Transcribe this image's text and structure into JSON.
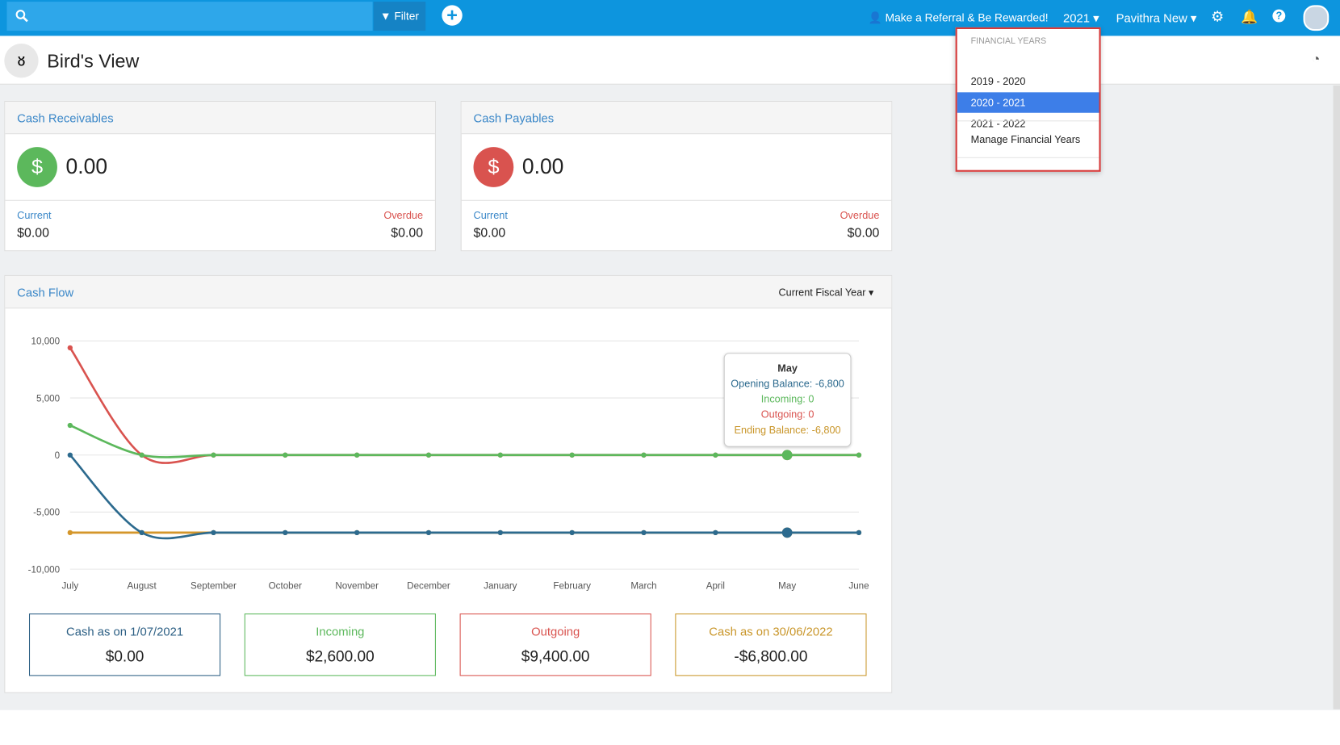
{
  "topbar": {
    "filter": "Filter",
    "referral": "Make a Referral & Be Rewarded!",
    "year": "2021",
    "user": "Pavithra New"
  },
  "page_title": "Bird's View",
  "dropdown": {
    "heading": "FINANCIAL YEARS",
    "items": [
      "2019 - 2020",
      "2020 - 2021",
      "2021 - 2022"
    ],
    "selected": 1,
    "manage": "Manage Financial Years"
  },
  "receivables": {
    "title": "Cash Receivables",
    "symbol": "$",
    "total": "0.00",
    "current_label": "Current",
    "current": "$0.00",
    "overdue_label": "Overdue",
    "overdue": "$0.00"
  },
  "payables": {
    "title": "Cash Payables",
    "symbol": "$",
    "total": "0.00",
    "current_label": "Current",
    "current": "$0.00",
    "overdue_label": "Overdue",
    "overdue": "$0.00"
  },
  "cashflow": {
    "title": "Cash Flow",
    "period": "Current Fiscal Year",
    "tooltip": {
      "title": "May",
      "lines": [
        "Opening Balance: -6,800",
        "Incoming: 0",
        "Outgoing: 0",
        "Ending Balance: -6,800"
      ]
    },
    "summary": [
      {
        "label": "Cash as on 1/07/2021",
        "value": "$0.00",
        "color": "#2c5f84"
      },
      {
        "label": "Incoming",
        "value": "$2,600.00",
        "color": "#5cb85c"
      },
      {
        "label": "Outgoing",
        "value": "$9,400.00",
        "color": "#d9534f"
      },
      {
        "label": "Cash as on 30/06/2022",
        "value": "-$6,800.00",
        "color": "#c9962a"
      }
    ]
  },
  "chart_data": {
    "type": "line",
    "categories": [
      "July",
      "August",
      "September",
      "October",
      "November",
      "December",
      "January",
      "February",
      "March",
      "April",
      "May",
      "June"
    ],
    "series": [
      {
        "color": "#d9534f",
        "values": [
          9400,
          0,
          0,
          0,
          0,
          0,
          0,
          0,
          0,
          0,
          0,
          0
        ]
      },
      {
        "color": "#d4962a",
        "values": [
          -6800,
          -6800,
          -6800,
          -6800,
          -6800,
          -6800,
          -6800,
          -6800,
          -6800,
          -6800,
          -6800,
          -6800
        ]
      },
      {
        "color": "#5cb85c",
        "values": [
          2600,
          0,
          0,
          0,
          0,
          0,
          0,
          0,
          0,
          0,
          0,
          0
        ]
      },
      {
        "color": "#2c6a8e",
        "values": [
          0,
          -6800,
          -6800,
          -6800,
          -6800,
          -6800,
          -6800,
          -6800,
          -6800,
          -6800,
          -6800,
          -6800
        ]
      }
    ],
    "ylim": [
      -10000,
      10000
    ],
    "yticks": [
      {
        "value": -10000,
        "label": "-10,000"
      },
      {
        "value": -5000,
        "label": "-5,000"
      },
      0,
      {
        "value": 5000,
        "label": "5,000"
      },
      {
        "value": 10000,
        "label": "10,000"
      }
    ],
    "grid": true,
    "highlight_index": 10
  }
}
